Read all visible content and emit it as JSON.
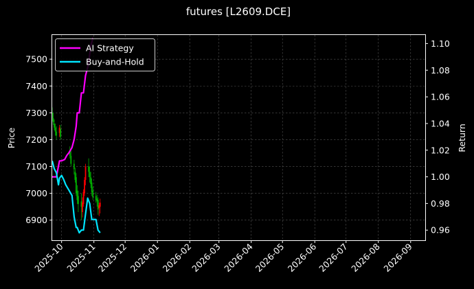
{
  "chart_data": {
    "type": "line",
    "title": "futures [L2609.DCE]",
    "xlabel": "",
    "ylabel": "Price",
    "y2label": "Return",
    "x_ticks": [
      "2025-10",
      "2025-11",
      "2025-12",
      "2026-01",
      "2026-02",
      "2026-03",
      "2026-04",
      "2026-05",
      "2026-06",
      "2026-07",
      "2026-08",
      "2026-09"
    ],
    "x_range": [
      "2025-09-22",
      "2026-09-15"
    ],
    "ylim": [
      6825,
      7590
    ],
    "y_ticks": [
      6900,
      7000,
      7100,
      7200,
      7300,
      7400,
      7500
    ],
    "y2lim": [
      0.9524,
      1.1064
    ],
    "y2_ticks": [
      0.96,
      0.98,
      1.0,
      1.02,
      1.04,
      1.06,
      1.08,
      1.1
    ],
    "grid": true,
    "legend_position": "top-left",
    "up_color": "#ff0000",
    "down_color": "#00b000",
    "series": [
      {
        "name": "AI Strategy",
        "color": "#ff00ff",
        "axis": "right",
        "x": [
          "2025-09-22",
          "2025-09-24",
          "2025-09-26",
          "2025-09-28",
          "2025-09-29",
          "2025-10-01",
          "2025-10-04",
          "2025-10-06",
          "2025-10-08",
          "2025-10-11",
          "2025-10-13",
          "2025-10-15",
          "2025-10-16",
          "2025-10-18",
          "2025-10-20",
          "2025-10-22",
          "2025-10-24",
          "2025-10-26",
          "2025-10-27",
          "2025-10-29",
          "2025-10-31"
        ],
        "values": [
          1.0,
          1.0,
          1.0,
          1.008,
          1.012,
          1.012,
          1.013,
          1.016,
          1.018,
          1.022,
          1.028,
          1.038,
          1.048,
          1.048,
          1.063,
          1.063,
          1.076,
          1.082,
          1.086,
          1.098,
          1.104
        ]
      },
      {
        "name": "Buy-and-Hold",
        "color": "#00e5ff",
        "axis": "right",
        "x": [
          "2025-09-22",
          "2025-09-24",
          "2025-09-26",
          "2025-09-28",
          "2025-09-29",
          "2025-10-01",
          "2025-10-03",
          "2025-10-05",
          "2025-10-08",
          "2025-10-11",
          "2025-10-13",
          "2025-10-15",
          "2025-10-16",
          "2025-10-18",
          "2025-10-20",
          "2025-10-22",
          "2025-10-24",
          "2025-10-26",
          "2025-10-28",
          "2025-10-30",
          "2025-11-01",
          "2025-11-03",
          "2025-11-05",
          "2025-11-07"
        ],
        "values": [
          1.012,
          1.006,
          1.003,
          0.994,
          0.999,
          1.001,
          0.998,
          0.994,
          0.99,
          0.986,
          0.97,
          0.962,
          0.962,
          0.958,
          0.96,
          0.96,
          0.972,
          0.984,
          0.98,
          0.968,
          0.968,
          0.968,
          0.96,
          0.958
        ]
      }
    ],
    "candles": {
      "x": [
        "2025-09-22",
        "2025-09-23",
        "2025-09-24",
        "2025-09-25",
        "2025-09-26",
        "2025-09-29",
        "2025-09-30",
        "2025-10-09",
        "2025-10-10",
        "2025-10-13",
        "2025-10-14",
        "2025-10-15",
        "2025-10-16",
        "2025-10-17",
        "2025-10-20",
        "2025-10-21",
        "2025-10-22",
        "2025-10-23",
        "2025-10-24",
        "2025-10-27",
        "2025-10-28",
        "2025-10-29",
        "2025-10-30",
        "2025-10-31",
        "2025-11-03",
        "2025-11-04",
        "2025-11-05",
        "2025-11-06",
        "2025-11-07"
      ],
      "open": [
        7300,
        7280,
        7260,
        7245,
        7230,
        7225,
        7240,
        7160,
        7140,
        7110,
        7080,
        7060,
        7010,
        6990,
        6970,
        6930,
        6960,
        7000,
        7050,
        7100,
        7080,
        7060,
        7040,
        7010,
        6990,
        6980,
        6975,
        6945,
        6950
      ],
      "high": [
        7320,
        7300,
        7275,
        7260,
        7250,
        7255,
        7255,
        7175,
        7160,
        7125,
        7095,
        7075,
        7030,
        7010,
        7000,
        6985,
        7015,
        7060,
        7110,
        7130,
        7100,
        7080,
        7055,
        7025,
        7005,
        6995,
        6985,
        6965,
        6980
      ],
      "low": [
        7270,
        7255,
        7235,
        7215,
        7200,
        7210,
        7200,
        7130,
        7100,
        7070,
        7040,
        6990,
        6960,
        6930,
        6900,
        6910,
        6950,
        6990,
        7030,
        7060,
        7040,
        7020,
        6990,
        6975,
        6965,
        6950,
        6920,
        6915,
        6925
      ],
      "close": [
        7280,
        7265,
        7245,
        7230,
        7215,
        7245,
        7210,
        7140,
        7110,
        7090,
        7050,
        7000,
        6975,
        6960,
        6950,
        6965,
        7005,
        7050,
        7100,
        7080,
        7060,
        7035,
        7005,
        6985,
        6975,
        6970,
        6940,
        6955,
        6965
      ]
    }
  }
}
